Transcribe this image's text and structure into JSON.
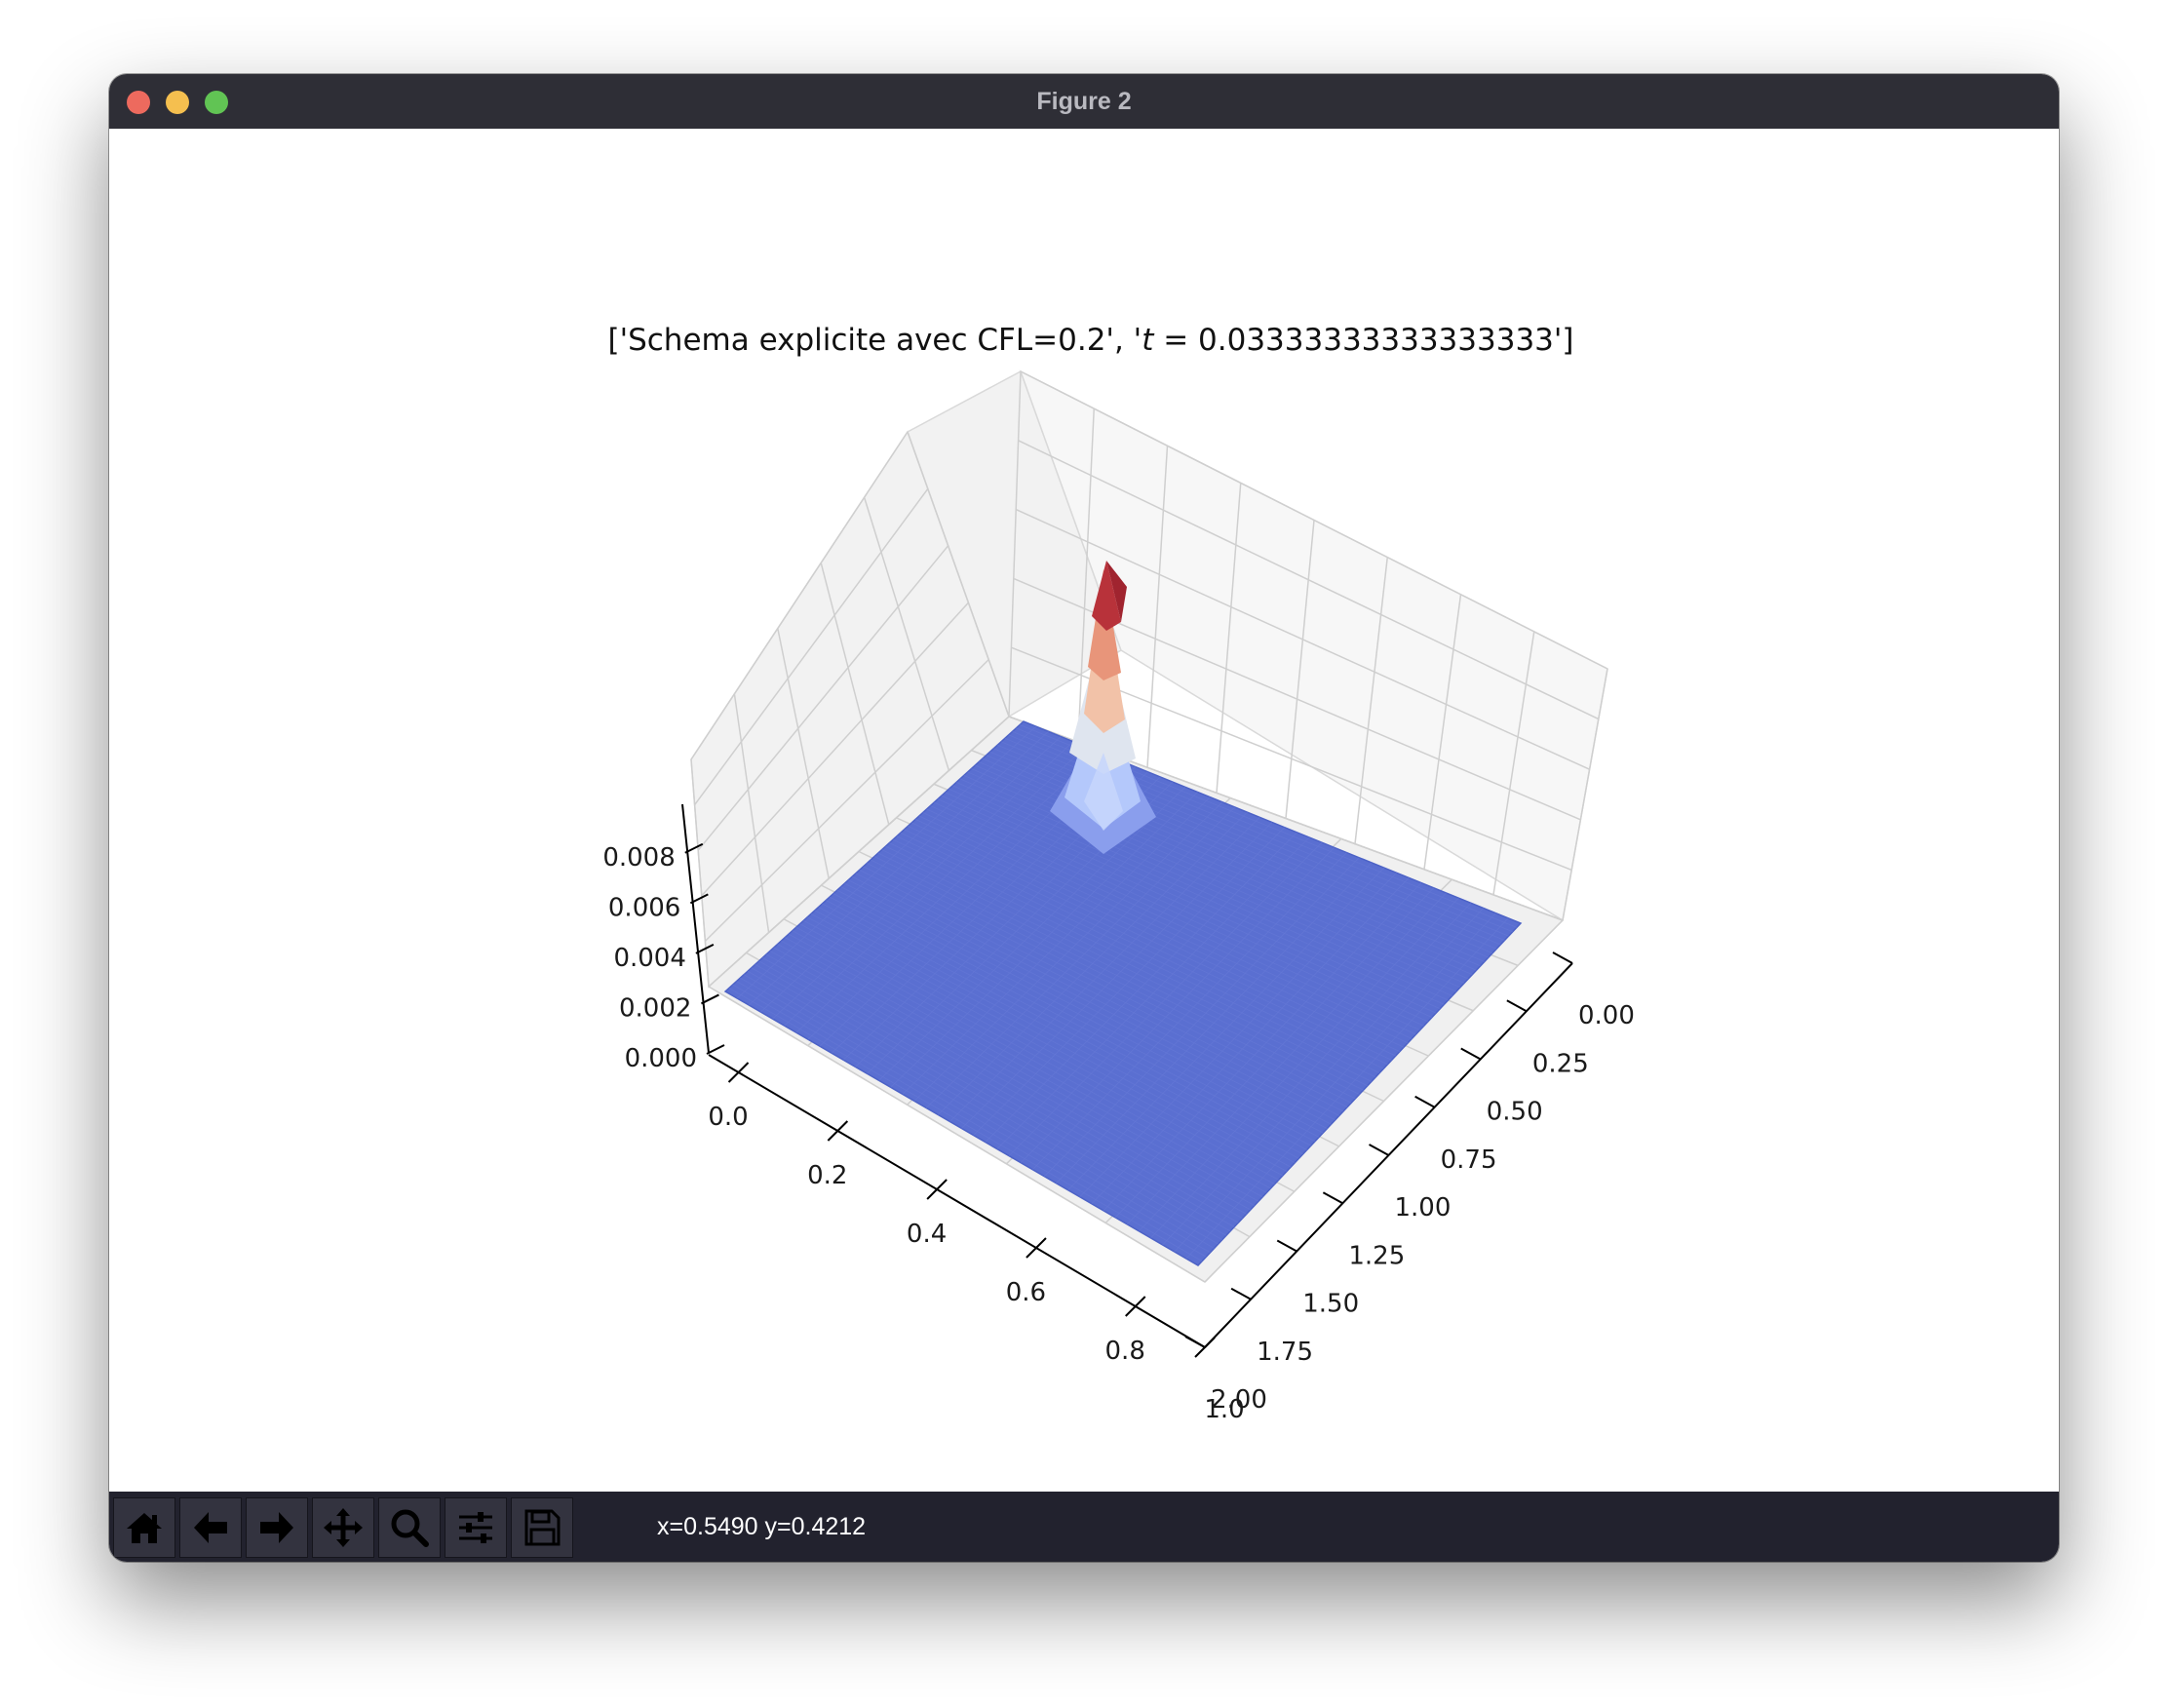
{
  "window": {
    "title": "Figure 2"
  },
  "toolbar": {
    "buttons": [
      {
        "name": "home-button",
        "icon": "home-icon"
      },
      {
        "name": "back-button",
        "icon": "arrow-left-icon"
      },
      {
        "name": "forward-button",
        "icon": "arrow-right-icon"
      },
      {
        "name": "pan-button",
        "icon": "move-icon"
      },
      {
        "name": "zoom-button",
        "icon": "magnifier-icon"
      },
      {
        "name": "configure-subplots-button",
        "icon": "sliders-icon"
      },
      {
        "name": "save-button",
        "icon": "floppy-disk-icon"
      }
    ],
    "coords": "x=0.5490 y=0.4212"
  },
  "chart_data": {
    "type": "surface3d",
    "title": "['Schema explicite avec CFL=0.2', '$t = 0.03333333333333333$']",
    "title_parts": [
      "['Schema explicite avec CFL=0.2', '",
      "t",
      " = 0.03333333333333333']"
    ],
    "colormap": "coolwarm",
    "x_axis": {
      "ticks": [
        "0.0",
        "0.2",
        "0.4",
        "0.6",
        "0.8",
        "1.0"
      ],
      "lim": [
        0,
        1
      ]
    },
    "y_axis": {
      "ticks": [
        "0.00",
        "0.25",
        "0.50",
        "0.75",
        "1.00",
        "1.25",
        "1.50",
        "1.75",
        "2.00"
      ],
      "lim": [
        0,
        2
      ]
    },
    "z_axis": {
      "ticks": [
        "0.000",
        "0.002",
        "0.004",
        "0.006",
        "0.008"
      ],
      "lim": [
        0,
        0.009
      ]
    },
    "peak": {
      "x": 0.05,
      "y": 0.05,
      "z": 0.0088
    },
    "grid": true
  }
}
